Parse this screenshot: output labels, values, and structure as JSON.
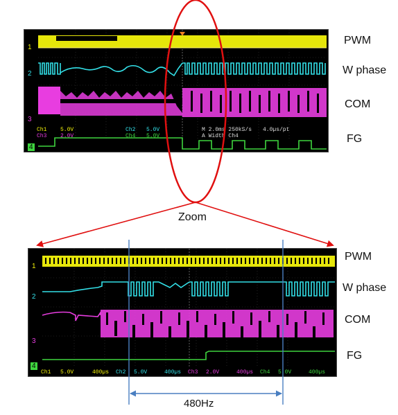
{
  "top_scope": {
    "channel_numbers": [
      "1",
      "2",
      "3",
      "4"
    ],
    "readout": {
      "ch1": "Ch1",
      "ch1_scale": "5.0V",
      "ch2": "Ch2",
      "ch2_scale": "5.0V",
      "ch3": "Ch3",
      "ch3_scale": "2.0V",
      "ch4": "Ch4",
      "ch4_scale": "5.0V",
      "timebase": "M 2.0ms 250kS/s",
      "pts": "4.0µs/pt",
      "trigger": "A Width  Ch4"
    }
  },
  "bottom_scope": {
    "channel_numbers": [
      "1",
      "2",
      "3",
      "4"
    ],
    "readout": {
      "ch1": "Ch1",
      "ch1_scale": "5.0V",
      "ch1_time": "400µs",
      "ch2": "Ch2",
      "ch2_scale": "5.0V",
      "ch2_time": "400µs",
      "ch3": "Ch3",
      "ch3_scale": "2.0V",
      "ch3_time": "400µs",
      "ch4": "Ch4",
      "ch4_scale": "5.0V",
      "ch4_time": "400µs"
    }
  },
  "labels": {
    "top": [
      "PWM",
      "W phase",
      "COM",
      "FG"
    ],
    "bottom": [
      "PWM",
      "W phase",
      "COM",
      "FG"
    ],
    "zoom": "Zoom",
    "frequency": "480Hz"
  },
  "colors": {
    "ch1": "#f2f20a",
    "ch2": "#33e0e8",
    "ch3": "#e83de0",
    "ch4": "#3fd63f",
    "annotation_red": "#e01010",
    "marker_blue": "#4a7fc1"
  }
}
